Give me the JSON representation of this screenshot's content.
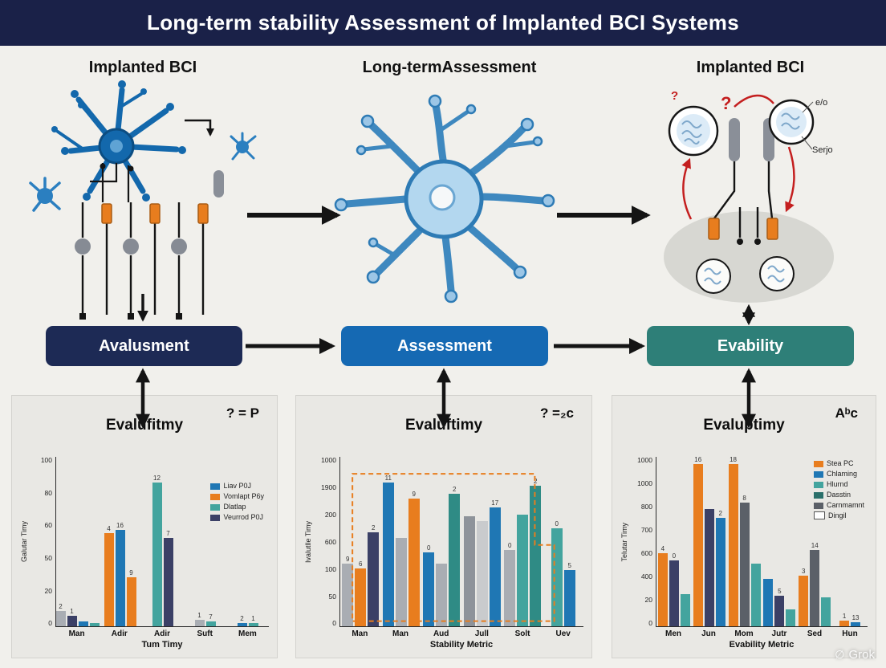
{
  "banner": {
    "title": "Long-term stability Assessment of Implanted BCI Systems"
  },
  "columns": [
    {
      "header": "Implanted BCI"
    },
    {
      "header": "Long-termAssessment"
    },
    {
      "header": "Implanted BCI"
    }
  ],
  "stages": [
    {
      "label": "Avalusment",
      "color": "#1d2a55"
    },
    {
      "label": "Assessment",
      "color": "#1569b3"
    },
    {
      "label": "Evability",
      "color": "#2e7f78"
    }
  ],
  "diagram_labels": {
    "question_mark": "?",
    "right_top": "e/o",
    "right_mid": "Serjo"
  },
  "watermark": {
    "label": "Grok"
  },
  "chart_data": [
    {
      "type": "bar",
      "title": "Evalufitmy",
      "annotation": "? = P",
      "xlabel": "Tum Timy",
      "ylabel": "Galutar Timy",
      "ylim": [
        0,
        100
      ],
      "y_ticks": [
        "100",
        "80",
        "60",
        "50",
        "20",
        "0"
      ],
      "legend_position": "inside-right",
      "legend": [
        {
          "label": "Liav P0J",
          "color": "#1f77b4"
        },
        {
          "label": "Vomlapt P6y",
          "color": "#e87d1e"
        },
        {
          "label": "Dlatlap",
          "color": "#43a49e"
        },
        {
          "label": "Veurrod P0J",
          "color": "#3b4066"
        }
      ],
      "groups": [
        {
          "category": "Man",
          "bars": [
            {
              "value": 9,
              "color": "#a9adb3",
              "label": "2"
            },
            {
              "value": 6,
              "color": "#3b4066",
              "label": "1"
            },
            {
              "value": 3,
              "color": "#1f77b4",
              "label": ""
            },
            {
              "value": 2,
              "color": "#43a49e",
              "label": ""
            }
          ]
        },
        {
          "category": "Adir",
          "bars": [
            {
              "value": 55,
              "color": "#e87d1e",
              "label": "4"
            },
            {
              "value": 57,
              "color": "#1f77b4",
              "label": "16"
            },
            {
              "value": 29,
              "color": "#e87d1e",
              "label": "9"
            }
          ]
        },
        {
          "category": "Adir",
          "bars": [
            {
              "value": 85,
              "color": "#43a49e",
              "label": "12"
            },
            {
              "value": 52,
              "color": "#3b4066",
              "label": "7"
            }
          ]
        },
        {
          "category": "Suft",
          "bars": [
            {
              "value": 4,
              "color": "#a9adb3",
              "label": "1"
            },
            {
              "value": 3,
              "color": "#43a49e",
              "label": "7"
            }
          ]
        },
        {
          "category": "Mem",
          "bars": [
            {
              "value": 2,
              "color": "#1f77b4",
              "label": "2"
            },
            {
              "value": 2,
              "color": "#43a49e",
              "label": "1"
            }
          ]
        }
      ]
    },
    {
      "type": "bar",
      "title": "Evaluftimy",
      "annotation": "? =₂c",
      "xlabel": "Stability Metric",
      "ylabel": "Ivalutlle Timy",
      "ylim": [
        0,
        1000
      ],
      "y_ticks": [
        "1000",
        "1900",
        "200",
        "600",
        "100",
        "50",
        "0"
      ],
      "highlight_box": true,
      "groups": [
        {
          "category": "Man",
          "bars": [
            {
              "value": 370,
              "color": "#a9adb3",
              "label": "9"
            },
            {
              "value": 340,
              "color": "#e87d1e",
              "label": "6"
            },
            {
              "value": 555,
              "color": "#3b4066",
              "label": "2"
            }
          ]
        },
        {
          "category": "Man",
          "bars": [
            {
              "value": 850,
              "color": "#1f77b4",
              "label": "11"
            },
            {
              "value": 520,
              "color": "#a9adb3",
              "label": ""
            },
            {
              "value": 755,
              "color": "#e87d1e",
              "label": "9"
            }
          ]
        },
        {
          "category": "Aud",
          "bars": [
            {
              "value": 435,
              "color": "#1f77b4",
              "label": "0"
            },
            {
              "value": 370,
              "color": "#a9adb3",
              "label": ""
            },
            {
              "value": 780,
              "color": "#2f8b85",
              "label": "2"
            }
          ]
        },
        {
          "category": "Jull",
          "bars": [
            {
              "value": 650,
              "color": "#8e939a",
              "label": ""
            },
            {
              "value": 620,
              "color": "#c9cbcd",
              "label": ""
            },
            {
              "value": 700,
              "color": "#1f77b4",
              "label": "17"
            }
          ]
        },
        {
          "category": "Solt",
          "bars": [
            {
              "value": 450,
              "color": "#a9adb3",
              "label": "0"
            },
            {
              "value": 660,
              "color": "#43a49e",
              "label": ""
            },
            {
              "value": 830,
              "color": "#2f8b85",
              "label": "2"
            }
          ]
        },
        {
          "category": "Uev",
          "bars": [
            {
              "value": 580,
              "color": "#43a49e",
              "label": "0"
            },
            {
              "value": 330,
              "color": "#1f77b4",
              "label": "5"
            }
          ]
        }
      ]
    },
    {
      "type": "bar",
      "title": "Evaluptimy",
      "annotation": "Aᵇc",
      "xlabel": "Evability Metric",
      "ylabel": "Telutar Timy",
      "ylim": [
        0,
        1000
      ],
      "y_ticks": [
        "1000",
        "1000",
        "800",
        "700",
        "600",
        "400",
        "20",
        "0"
      ],
      "legend_position": "inside-right",
      "legend": [
        {
          "label": "Stea PC",
          "color": "#e87d1e"
        },
        {
          "label": "Chlaming",
          "color": "#1f77b4"
        },
        {
          "label": "Hlurnd",
          "color": "#43a49e"
        },
        {
          "label": "Dasstin",
          "color": "#2a6f6a"
        },
        {
          "label": "Carnmamnt",
          "color": "#5b6068"
        },
        {
          "label": "Dingil",
          "color": "#ffffff"
        }
      ],
      "groups": [
        {
          "category": "Men",
          "bars": [
            {
              "value": 430,
              "color": "#e87d1e",
              "label": "4"
            },
            {
              "value": 390,
              "color": "#3b4066",
              "label": "0"
            },
            {
              "value": 190,
              "color": "#43a49e",
              "label": ""
            }
          ]
        },
        {
          "category": "Jun",
          "bars": [
            {
              "value": 965,
              "color": "#e87d1e",
              "label": "16"
            },
            {
              "value": 690,
              "color": "#3b4066",
              "label": ""
            },
            {
              "value": 640,
              "color": "#1f77b4",
              "label": "2"
            }
          ]
        },
        {
          "category": "Mom",
          "bars": [
            {
              "value": 985,
              "color": "#e87d1e",
              "label": "18"
            },
            {
              "value": 730,
              "color": "#5b6068",
              "label": "8"
            },
            {
              "value": 370,
              "color": "#43a49e",
              "label": ""
            }
          ]
        },
        {
          "category": "Jutr",
          "bars": [
            {
              "value": 280,
              "color": "#1f77b4",
              "label": ""
            },
            {
              "value": 180,
              "color": "#3b4066",
              "label": "5"
            },
            {
              "value": 100,
              "color": "#43a49e",
              "label": ""
            }
          ]
        },
        {
          "category": "Sed",
          "bars": [
            {
              "value": 300,
              "color": "#e87d1e",
              "label": "3"
            },
            {
              "value": 450,
              "color": "#5b6068",
              "label": "14"
            },
            {
              "value": 170,
              "color": "#43a49e",
              "label": ""
            }
          ]
        },
        {
          "category": "Hun",
          "bars": [
            {
              "value": 35,
              "color": "#e87d1e",
              "label": "1"
            },
            {
              "value": 25,
              "color": "#1f77b4",
              "label": "13"
            }
          ]
        }
      ]
    }
  ]
}
